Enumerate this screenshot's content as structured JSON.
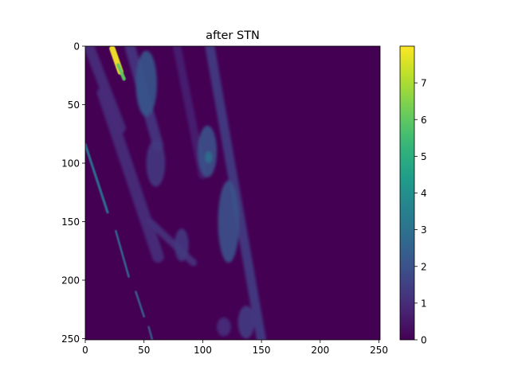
{
  "chart_data": {
    "type": "heatmap",
    "title": "after STN",
    "xlabel": "",
    "ylabel": "",
    "xlim": [
      0,
      251
    ],
    "ylim": [
      251,
      0
    ],
    "x_ticks": [
      0,
      50,
      100,
      150,
      200,
      250
    ],
    "y_ticks": [
      0,
      50,
      100,
      150,
      200,
      250
    ],
    "colorbar": {
      "range": [
        0,
        8
      ],
      "ticks": [
        0,
        1,
        2,
        3,
        4,
        5,
        6,
        7
      ],
      "colormap": "viridis"
    },
    "grid": false,
    "background_value": 0,
    "features": [
      {
        "kind": "line",
        "x0": 0,
        "y0": 84,
        "x1": 19,
        "y1": 142,
        "width": 2.2,
        "value": 2.9
      },
      {
        "kind": "line",
        "x0": 26,
        "y0": 158,
        "x1": 37,
        "y1": 197,
        "width": 1.8,
        "value": 2.6
      },
      {
        "kind": "line",
        "x0": 43,
        "y0": 210,
        "x1": 50,
        "y1": 231,
        "width": 1.8,
        "value": 2.4
      },
      {
        "kind": "line",
        "x0": 54,
        "y0": 240,
        "x1": 57,
        "y1": 251,
        "width": 1.8,
        "value": 2.2
      },
      {
        "kind": "line",
        "x0": 3,
        "y0": 0,
        "x1": 30,
        "y1": 70,
        "width": 9,
        "value": 1.0
      },
      {
        "kind": "line",
        "x0": 15,
        "y0": 40,
        "x1": 62,
        "y1": 180,
        "width": 10,
        "value": 1.0
      },
      {
        "kind": "line",
        "x0": 55,
        "y0": 150,
        "x1": 92,
        "y1": 185,
        "width": 6,
        "value": 1.1
      },
      {
        "kind": "line",
        "x0": 38,
        "y0": 0,
        "x1": 62,
        "y1": 85,
        "width": 9,
        "value": 1.2
      },
      {
        "kind": "line",
        "x0": 78,
        "y0": 0,
        "x1": 100,
        "y1": 110,
        "width": 7,
        "value": 0.7
      },
      {
        "kind": "line",
        "x0": 106,
        "y0": 0,
        "x1": 150,
        "y1": 251,
        "width": 8,
        "value": 1.3
      },
      {
        "kind": "blob",
        "cx": 52,
        "cy": 32,
        "rx": 9,
        "ry": 28,
        "value": 2.1
      },
      {
        "kind": "blob",
        "cx": 60,
        "cy": 100,
        "rx": 8,
        "ry": 20,
        "value": 1.3
      },
      {
        "kind": "blob",
        "cx": 104,
        "cy": 90,
        "rx": 8,
        "ry": 22,
        "value": 2.0
      },
      {
        "kind": "blob",
        "cx": 105,
        "cy": 95,
        "rx": 3,
        "ry": 5,
        "value": 2.9
      },
      {
        "kind": "blob",
        "cx": 122,
        "cy": 150,
        "rx": 9,
        "ry": 35,
        "value": 2.0
      },
      {
        "kind": "blob",
        "cx": 82,
        "cy": 170,
        "rx": 6,
        "ry": 14,
        "value": 1.3
      },
      {
        "kind": "blob",
        "cx": 137,
        "cy": 236,
        "rx": 7,
        "ry": 14,
        "value": 1.4
      },
      {
        "kind": "blob",
        "cx": 118,
        "cy": 240,
        "rx": 6,
        "ry": 8,
        "value": 1.0
      },
      {
        "kind": "line",
        "x0": 23,
        "y0": 2,
        "x1": 30,
        "y1": 22,
        "width": 5,
        "value": 7.9
      },
      {
        "kind": "line",
        "x0": 28,
        "y0": 16,
        "x1": 33,
        "y1": 28,
        "width": 3,
        "value": 6.0
      }
    ]
  }
}
